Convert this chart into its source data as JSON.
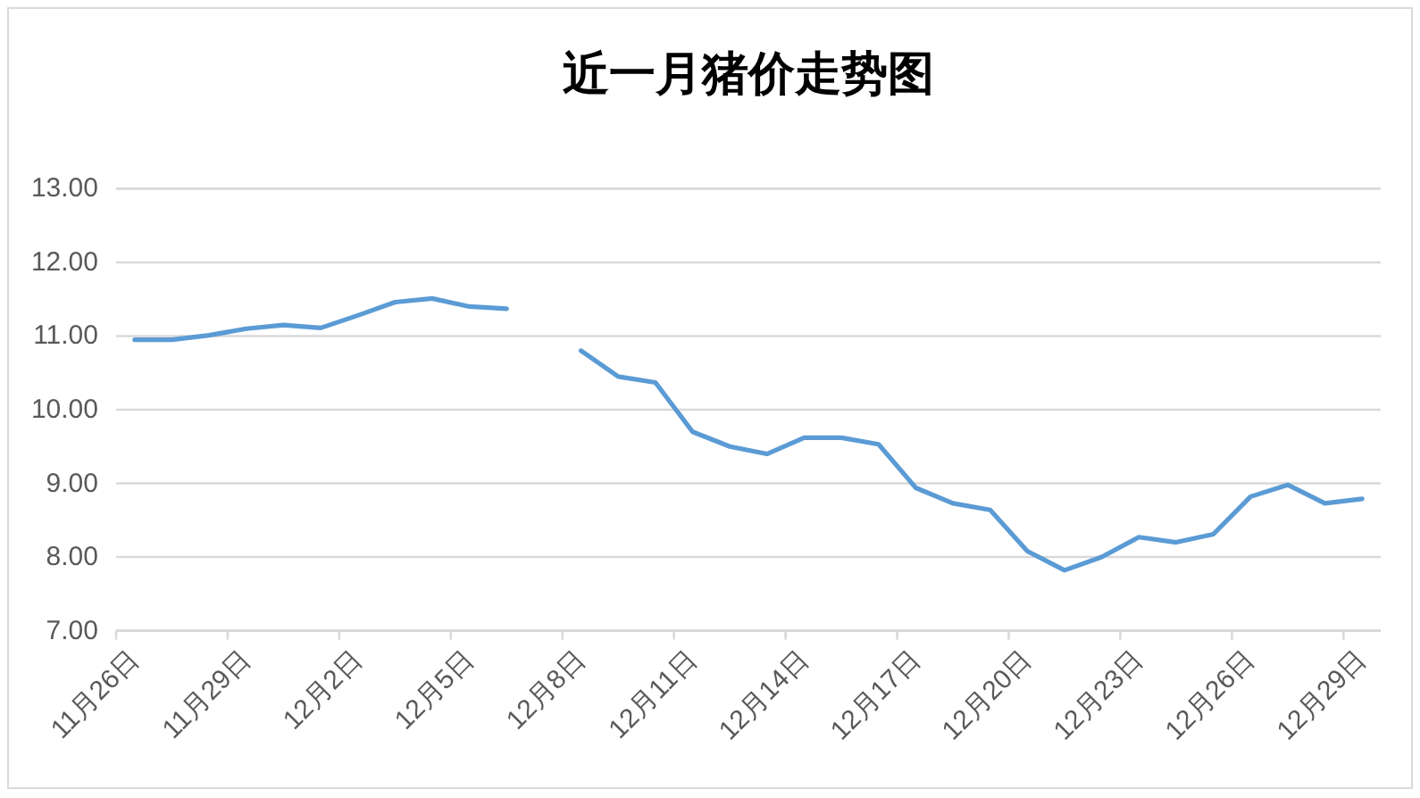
{
  "chart_data": {
    "type": "line",
    "title": "近一月猪价走势图",
    "categories": [
      "11月26日",
      null,
      null,
      "11月29日",
      null,
      null,
      "12月2日",
      null,
      null,
      "12月5日",
      null,
      null,
      "12月8日",
      null,
      null,
      "12月11日",
      null,
      null,
      "12月14日",
      null,
      null,
      "12月17日",
      null,
      null,
      "12月20日",
      null,
      null,
      "12月23日",
      null,
      null,
      "12月26日",
      null,
      null,
      "12月29日"
    ],
    "series": [
      {
        "color": "#5b9bd5",
        "values": [
          10.95,
          10.95,
          11.01,
          11.1,
          11.15,
          11.11,
          11.28,
          11.46,
          11.51,
          11.4,
          11.37,
          null,
          10.8,
          10.45,
          10.37,
          9.7,
          9.5,
          9.4,
          9.62,
          9.62,
          9.53,
          8.94,
          8.73,
          8.64,
          8.08,
          7.82,
          8.0,
          8.27,
          8.2,
          8.31,
          8.82,
          8.98,
          8.73,
          8.79
        ]
      }
    ],
    "ylim": [
      7,
      13
    ],
    "yticks": [
      {
        "value": 7,
        "label": "7.00"
      },
      {
        "value": 8,
        "label": "8.00"
      },
      {
        "value": 9,
        "label": "9.00"
      },
      {
        "value": 10,
        "label": "10.00"
      },
      {
        "value": 11,
        "label": "11.00"
      },
      {
        "value": 12,
        "label": "12.00"
      },
      {
        "value": 13,
        "label": "13.00"
      }
    ],
    "grid": "y",
    "line_style": "solid"
  }
}
